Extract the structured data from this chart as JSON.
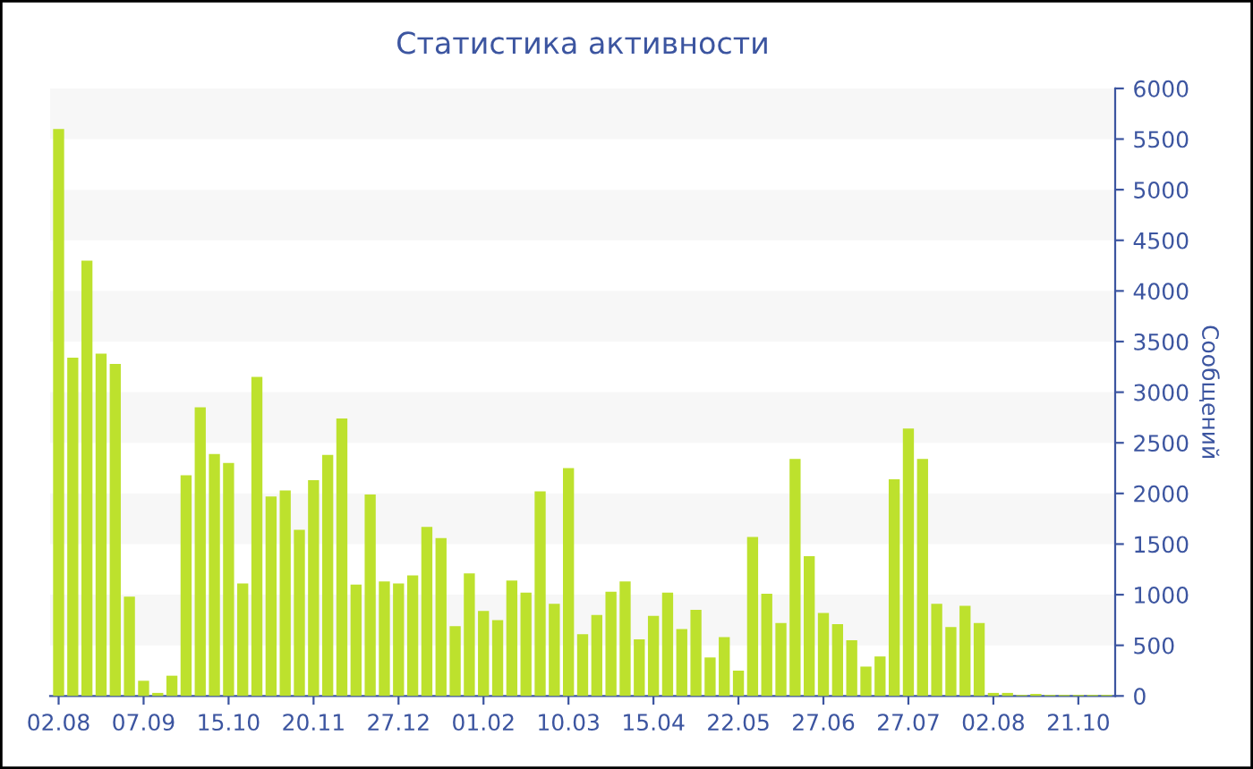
{
  "chart_data": {
    "type": "bar",
    "title": "Статистика активности",
    "ylabel": "Сообщений",
    "categories": [
      "02.08",
      null,
      null,
      null,
      null,
      null,
      "07.09",
      null,
      null,
      null,
      null,
      null,
      "15.10",
      null,
      null,
      null,
      null,
      null,
      "20.11",
      null,
      null,
      null,
      null,
      null,
      "27.12",
      null,
      null,
      null,
      null,
      null,
      "01.02",
      null,
      null,
      null,
      null,
      null,
      "10.03",
      null,
      null,
      null,
      null,
      null,
      "15.04",
      null,
      null,
      null,
      null,
      null,
      "22.05",
      null,
      null,
      null,
      null,
      null,
      "27.06",
      null,
      null,
      null,
      null,
      null,
      "27.07",
      null,
      null,
      null,
      null,
      null,
      "02.08",
      null,
      null,
      null,
      null,
      null,
      "21.10",
      null,
      null
    ],
    "values": [
      5600,
      3340,
      4300,
      3380,
      3280,
      980,
      150,
      30,
      200,
      2180,
      2850,
      2390,
      2300,
      1110,
      3150,
      1970,
      2030,
      1640,
      2130,
      2380,
      2740,
      1100,
      1990,
      1130,
      1110,
      1190,
      1670,
      1560,
      690,
      1210,
      840,
      750,
      1140,
      1020,
      2020,
      910,
      2250,
      610,
      800,
      1030,
      1130,
      560,
      790,
      1020,
      660,
      850,
      380,
      580,
      250,
      1570,
      1010,
      720,
      2340,
      1380,
      820,
      710,
      550,
      290,
      390,
      2140,
      2640,
      2340,
      910,
      680,
      890,
      720,
      30,
      30,
      10,
      20,
      10,
      10,
      10,
      10,
      10
    ],
    "color": "#bde12d",
    "ylim": [
      0,
      6000
    ],
    "yticks": [
      0,
      500,
      1000,
      1500,
      2000,
      2500,
      3000,
      3500,
      4000,
      4500,
      5000,
      5500,
      6000
    ],
    "bands": [
      {
        "axis": "y",
        "from": 500,
        "to": 1000,
        "color": "#f7f7f7"
      },
      {
        "axis": "y",
        "from": 1500,
        "to": 2000,
        "color": "#f7f7f7"
      },
      {
        "axis": "y",
        "from": 2500,
        "to": 3000,
        "color": "#f7f7f7"
      },
      {
        "axis": "y",
        "from": 3500,
        "to": 4000,
        "color": "#f7f7f7"
      },
      {
        "axis": "y",
        "from": 4500,
        "to": 5000,
        "color": "#f7f7f7"
      },
      {
        "axis": "y",
        "from": 5500,
        "to": 6000,
        "color": "#f7f7f7"
      }
    ]
  }
}
